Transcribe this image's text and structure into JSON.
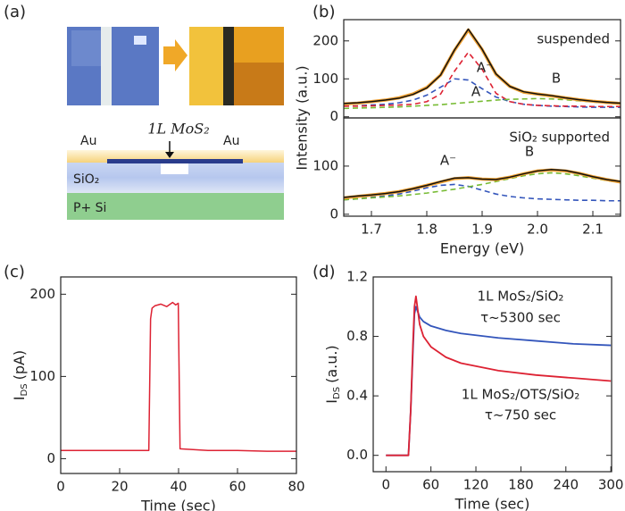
{
  "panel_labels": [
    "(a)",
    "(b)",
    "(c)",
    "(d)"
  ],
  "diagram": {
    "mos2_label": "1L MoS₂",
    "au_left": "Au",
    "au_right": "Au",
    "oxide": "SiO₂",
    "substrate": "P+ Si"
  },
  "chart_data": [
    {
      "type": "line",
      "ylabel": "Intensity (a.u.)",
      "x": [
        1.65,
        1.675,
        1.7,
        1.725,
        1.75,
        1.775,
        1.8,
        1.825,
        1.85,
        1.875,
        1.9,
        1.925,
        1.95,
        1.975,
        2.0,
        2.025,
        2.05,
        2.075,
        2.1,
        2.125,
        2.15
      ],
      "xlim": [
        1.65,
        2.15
      ],
      "ylim": [
        -3,
        256
      ],
      "yticks": [
        0,
        100,
        200
      ],
      "series": [
        {
          "color": "#3355bb",
          "dashed": true,
          "values": [
            28,
            29,
            31,
            33,
            37,
            44,
            57,
            78,
            100,
            97,
            74,
            52,
            40,
            33,
            30,
            28,
            27,
            26,
            25,
            25,
            25
          ]
        },
        {
          "color": "#dd2233",
          "dashed": true,
          "values": [
            28,
            28,
            29,
            30,
            31,
            33,
            40,
            60,
            120,
            170,
            125,
            62,
            40,
            33,
            30,
            29,
            28,
            28,
            27,
            27,
            27
          ]
        },
        {
          "color": "#77bb33",
          "dashed": true,
          "values": [
            22,
            23,
            24,
            25,
            26,
            28,
            30,
            32,
            35,
            38,
            41,
            44,
            46,
            47,
            48,
            47,
            45,
            42,
            39,
            36,
            34
          ]
        },
        {
          "color": "#f0a030",
          "width": 3.5,
          "values": [
            34,
            36,
            40,
            44,
            50,
            60,
            77,
            110,
            175,
            229,
            177,
            112,
            80,
            65,
            60,
            55,
            50,
            45,
            41,
            38,
            35
          ]
        },
        {
          "color": "#111111",
          "width": 1.5,
          "values": [
            35,
            37,
            40,
            44,
            49,
            59,
            76,
            110,
            176,
            231,
            178,
            113,
            80,
            66,
            60,
            56,
            50,
            45,
            41,
            38,
            36
          ]
        }
      ],
      "annotations": [
        {
          "text": "suspended",
          "color": "#111111"
        },
        {
          "text": "A⁻",
          "color": "#dd2233"
        },
        {
          "text": "A",
          "color": "#3355bb"
        },
        {
          "text": "B",
          "color": "#77bb33"
        }
      ]
    },
    {
      "type": "line",
      "xlabel": "Energy (eV)",
      "x": [
        1.65,
        1.675,
        1.7,
        1.725,
        1.75,
        1.775,
        1.8,
        1.825,
        1.85,
        1.875,
        1.9,
        1.925,
        1.95,
        1.975,
        2.0,
        2.025,
        2.05,
        2.075,
        2.1,
        2.125,
        2.15
      ],
      "xlim": [
        1.65,
        2.15
      ],
      "xticks": [
        1.7,
        1.8,
        1.9,
        {
          "value": 2,
          "label": "2.0"
        },
        2.1
      ],
      "ylim": [
        -4,
        200
      ],
      "yticks": [
        0,
        100
      ],
      "series": [
        {
          "color": "#3355bb",
          "dashed": true,
          "values": [
            30,
            32,
            35,
            38,
            42,
            48,
            55,
            60,
            62,
            58,
            50,
            42,
            37,
            34,
            32,
            31,
            30,
            29,
            29,
            28,
            28
          ]
        },
        {
          "color": "#77bb33",
          "dashed": true,
          "values": [
            30,
            32,
            34,
            36,
            38,
            41,
            44,
            48,
            52,
            57,
            62,
            68,
            74,
            80,
            84,
            86,
            84,
            80,
            75,
            70,
            66
          ]
        },
        {
          "color": "#f0a030",
          "width": 3.5,
          "values": [
            34,
            37,
            40,
            43,
            47,
            53,
            60,
            67,
            74,
            76,
            73,
            72,
            77,
            84,
            90,
            92,
            90,
            85,
            78,
            72,
            67
          ]
        },
        {
          "color": "#111111",
          "width": 1.5,
          "values": [
            35,
            38,
            40,
            43,
            47,
            53,
            60,
            68,
            75,
            76,
            73,
            72,
            77,
            84,
            90,
            93,
            91,
            85,
            78,
            72,
            68
          ]
        }
      ],
      "annotations": [
        {
          "text": "SiO₂ supported",
          "color": "#111111"
        },
        {
          "text": "A⁻",
          "color": "#3355bb"
        },
        {
          "text": "B",
          "color": "#77bb33"
        }
      ]
    },
    {
      "type": "line",
      "xlabel": "Time (sec)",
      "ylabel": [
        "I",
        "DS",
        "(pA)"
      ],
      "x": [
        0,
        10,
        20,
        29.9,
        30.5,
        31,
        32,
        34,
        36,
        38,
        39,
        39.9,
        40.5,
        50,
        60,
        70,
        80
      ],
      "xlim": [
        0,
        80
      ],
      "xticks": [
        0,
        20,
        40,
        60,
        80
      ],
      "ylim": [
        -18,
        221
      ],
      "yticks": [
        0,
        100,
        200
      ],
      "series": [
        {
          "color": "#dd2233",
          "width": 1.5,
          "values": [
            10,
            10,
            10,
            10,
            170,
            183,
            186,
            188,
            185,
            190,
            187,
            189,
            12,
            10,
            10,
            9,
            9
          ]
        }
      ]
    },
    {
      "type": "line",
      "xlabel": "Time (sec)",
      "ylabel": [
        "I",
        "DS",
        "(a.u.)"
      ],
      "x": [
        0,
        20,
        30,
        33,
        36,
        38,
        40,
        45,
        50,
        60,
        80,
        100,
        150,
        200,
        250,
        300
      ],
      "xlim": [
        -17,
        301
      ],
      "xticks": [
        0,
        60,
        120,
        180,
        240,
        300
      ],
      "ylim": [
        -0.11,
        1.2
      ],
      "yticks": [
        {
          "value": 0,
          "label": "0.0"
        },
        0.4,
        0.8,
        1.2
      ],
      "series": [
        {
          "color": "#3355bb",
          "width": 1.8,
          "values": [
            0,
            0,
            0,
            0.3,
            0.7,
            0.95,
            1.0,
            0.93,
            0.9,
            0.87,
            0.84,
            0.82,
            0.79,
            0.77,
            0.75,
            0.74
          ]
        },
        {
          "color": "#dd2233",
          "width": 1.8,
          "values": [
            0,
            0,
            0,
            0.3,
            0.75,
            1.0,
            1.07,
            0.88,
            0.8,
            0.73,
            0.66,
            0.62,
            0.57,
            0.54,
            0.52,
            0.5
          ]
        }
      ],
      "annotations": [
        {
          "text": "1L MoS₂/SiO₂",
          "color": "#3355bb"
        },
        {
          "text": "τ~5300 sec",
          "color": "#3355bb"
        },
        {
          "text": "1L MoS₂/OTS/SiO₂",
          "color": "#dd2233"
        },
        {
          "text": "τ~750 sec",
          "color": "#dd2233"
        }
      ]
    }
  ]
}
